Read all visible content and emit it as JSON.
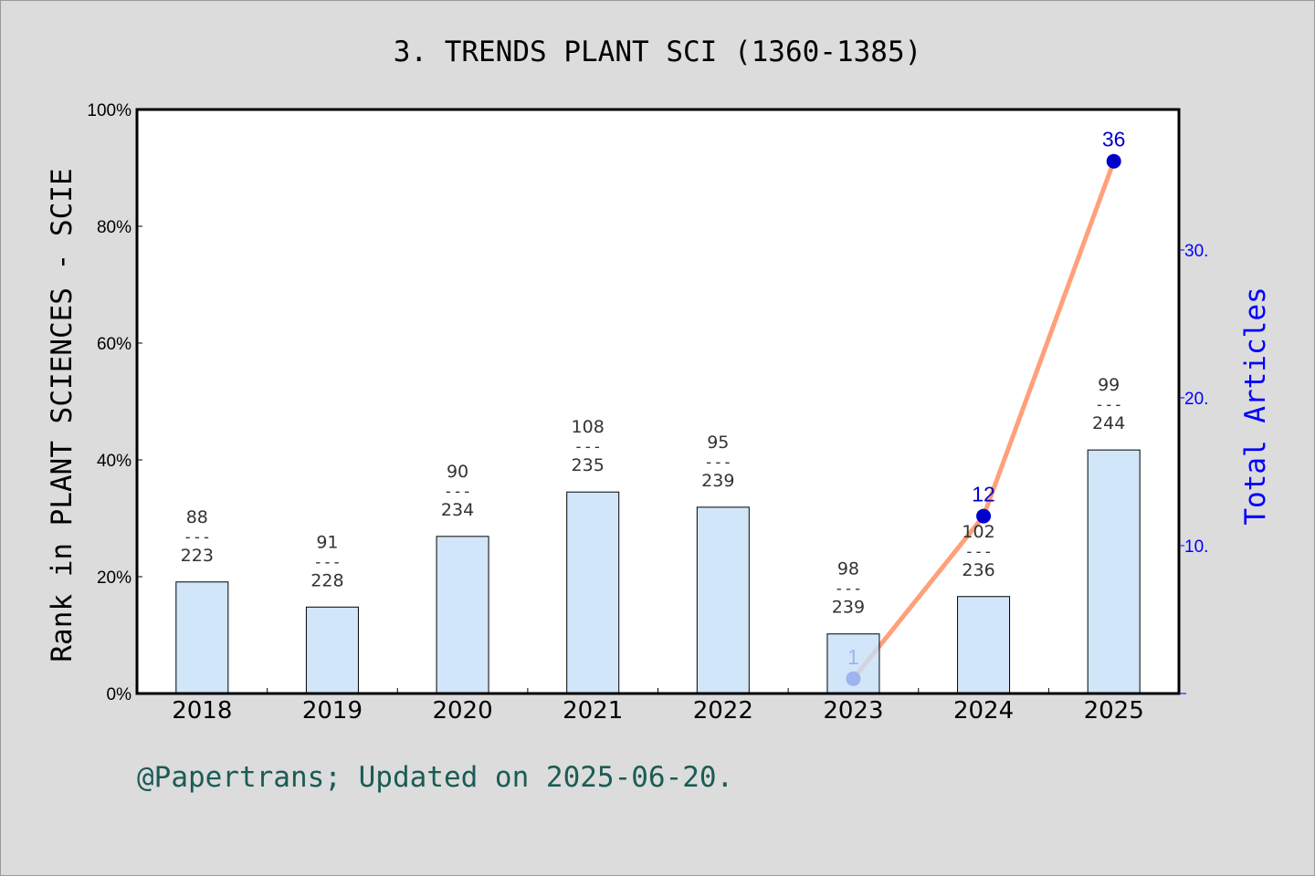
{
  "chart_data": {
    "type": "bar+line",
    "title": "3. TRENDS PLANT SCI (1360-1385)",
    "ylabel": "Rank in PLANT SCIENCES - SCIE",
    "y2label": "Total Articles",
    "categories": [
      "2018",
      "2019",
      "2020",
      "2021",
      "2022",
      "2023",
      "2024",
      "2025"
    ],
    "ylim": [
      0,
      100
    ],
    "yticks": [
      "0%",
      "20%",
      "40%",
      "60%",
      "80%",
      "100%"
    ],
    "y2lim": [
      0,
      39.5
    ],
    "y2ticks": [
      "10.",
      "20.",
      "30."
    ],
    "bars": {
      "values": [
        19.1,
        14.8,
        26.9,
        34.5,
        31.9,
        10.2,
        16.6,
        41.7
      ],
      "rank": [
        "88",
        "91",
        "90",
        "108",
        "95",
        "98",
        "102",
        "99"
      ],
      "total": [
        "223",
        "228",
        "234",
        "235",
        "239",
        "239",
        "236",
        "244"
      ],
      "color": "#c5e0f7"
    },
    "line": {
      "categories": [
        "2023",
        "2024",
        "2025"
      ],
      "values": [
        1,
        12,
        36
      ],
      "labels": [
        "1",
        "12",
        "36"
      ],
      "color": "#ffa07a",
      "marker_color": "#0000cc"
    },
    "grid": false
  },
  "footer": "@Papertrans; Updated on 2025-06-20."
}
